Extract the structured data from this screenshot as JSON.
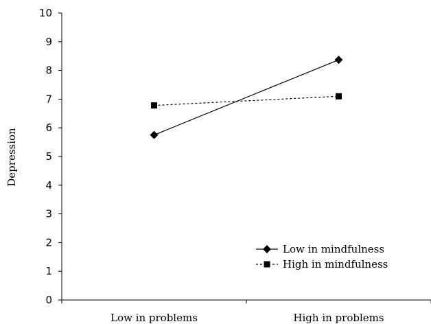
{
  "chart_data": {
    "type": "line",
    "title": "",
    "xlabel": "",
    "ylabel": "Depression",
    "categories": [
      "Low in problems",
      "High in problems"
    ],
    "ylim": [
      0,
      10
    ],
    "yticks": [
      0,
      1,
      2,
      3,
      4,
      5,
      6,
      7,
      8,
      9,
      10
    ],
    "grid": false,
    "legend_position": "bottom-right",
    "series": [
      {
        "name": "Low in mindfulness",
        "values": [
          5.75,
          8.37
        ],
        "marker": "diamond",
        "line_style": "solid",
        "color": "#000000"
      },
      {
        "name": "High in mindfulness",
        "values": [
          6.78,
          7.1
        ],
        "marker": "square",
        "line_style": "dashed",
        "color": "#000000"
      }
    ]
  }
}
